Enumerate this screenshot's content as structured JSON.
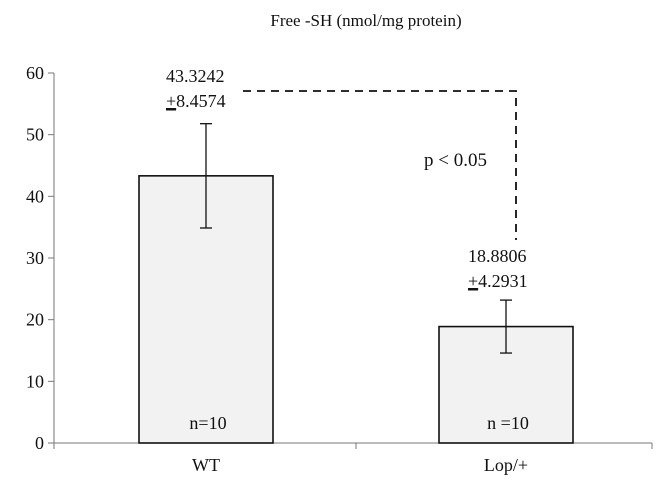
{
  "chart_data": {
    "type": "bar",
    "title": "Free -SH (nmol/mg protein)",
    "xlabel": "",
    "ylabel": "",
    "categories": [
      "WT",
      "Lop/+"
    ],
    "values": [
      43.3242,
      18.8806
    ],
    "errors": [
      8.4574,
      4.2931
    ],
    "value_labels": [
      "43.3242",
      "18.8806"
    ],
    "error_labels": [
      "+8.4574",
      "+4.2931"
    ],
    "n_labels": [
      "n=10",
      "n =10"
    ],
    "ylim": [
      0,
      60
    ],
    "yticks": [
      0,
      10,
      20,
      30,
      40,
      50,
      60
    ],
    "grid": false,
    "significance": {
      "text": "p < 0.05",
      "between": [
        0,
        1
      ]
    },
    "bar_color": "#f2f2f2",
    "edge_color": "#111111"
  }
}
